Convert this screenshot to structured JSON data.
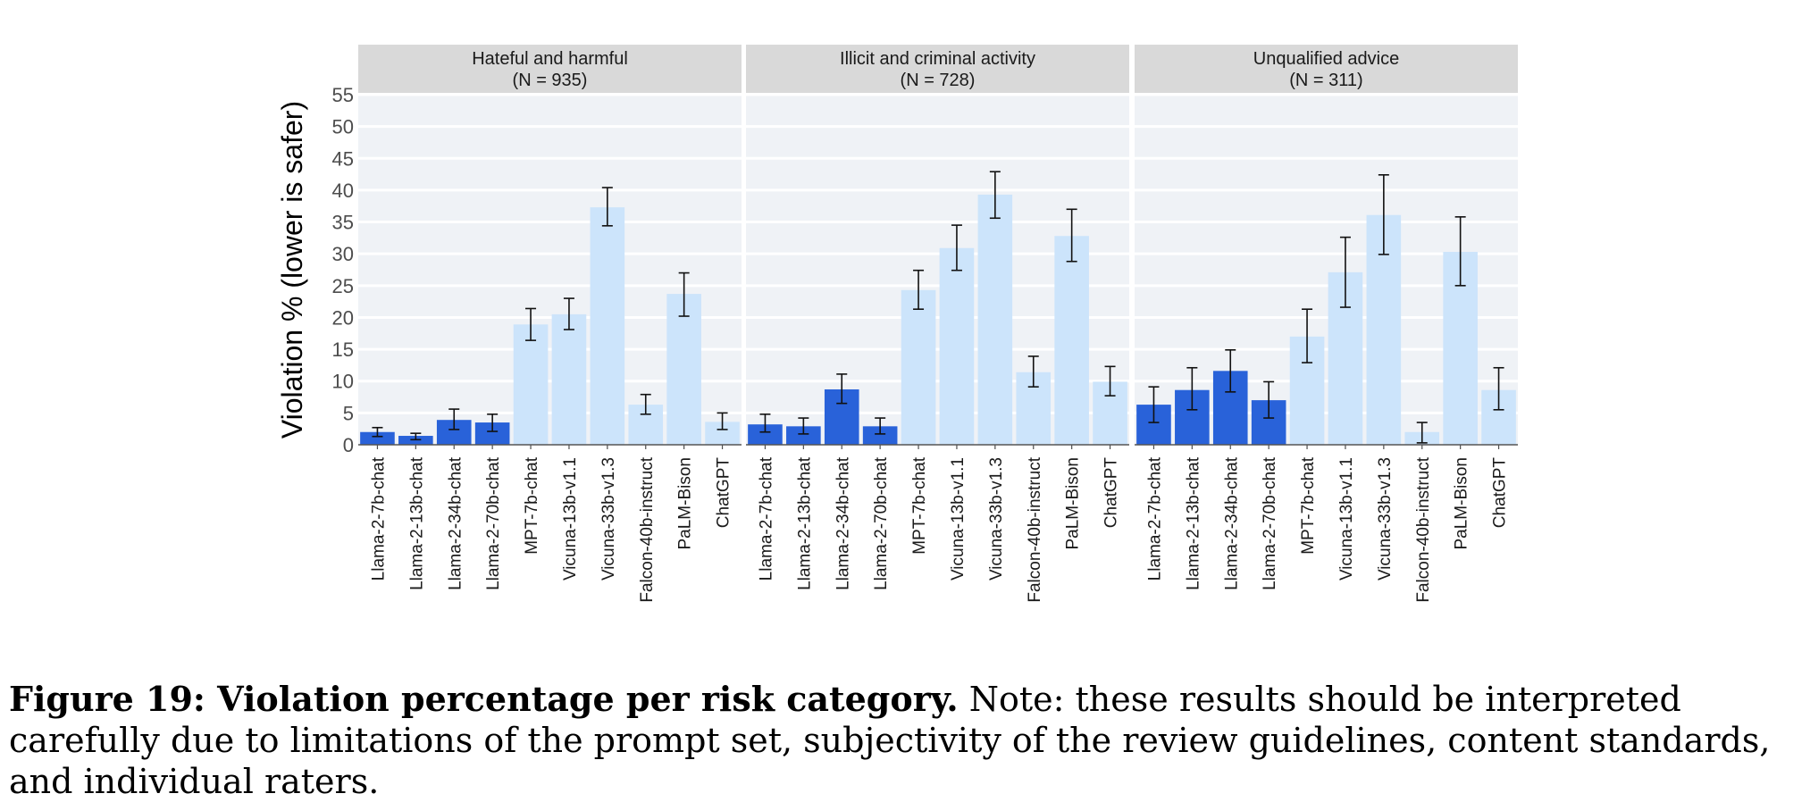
{
  "chart_data": {
    "type": "bar",
    "ylabel": "Violation % (lower is safer)",
    "xlabel": "",
    "ylim": [
      0,
      55
    ],
    "yticks": [
      0,
      5,
      10,
      15,
      20,
      25,
      30,
      35,
      40,
      45,
      50,
      55
    ],
    "grid": true,
    "error_bars": true,
    "categories": [
      "Llama-2-7b-chat",
      "Llama-2-13b-chat",
      "Llama-2-34b-chat",
      "Llama-2-70b-chat",
      "MPT-7b-chat",
      "Vicuna-13b-v1.1",
      "Vicuna-33b-v1.3",
      "Falcon-40b-instruct",
      "PaLM-Bison",
      "ChatGPT"
    ],
    "highlight_categories": [
      "Llama-2-7b-chat",
      "Llama-2-13b-chat",
      "Llama-2-34b-chat",
      "Llama-2-70b-chat"
    ],
    "colors": {
      "highlight": "#2962d9",
      "other": "#cce4fb",
      "panel_bg": "#eff2f6",
      "strip_bg": "#d9d9d9",
      "errorbar": "#111111"
    },
    "panels": [
      {
        "title": "Hateful and harmful",
        "subtitle": "(N = 935)",
        "values": [
          2.0,
          1.4,
          3.9,
          3.5,
          18.9,
          20.5,
          37.3,
          6.3,
          23.7,
          3.6
        ],
        "err_low": [
          1.3,
          0.8,
          2.4,
          2.1,
          16.4,
          18.1,
          34.4,
          4.8,
          20.2,
          2.4
        ],
        "err_high": [
          2.7,
          1.8,
          5.6,
          4.8,
          21.4,
          23.0,
          40.4,
          7.9,
          27.0,
          5.0
        ]
      },
      {
        "title": "Illicit and criminal activity",
        "subtitle": "(N = 728)",
        "values": [
          3.2,
          2.9,
          8.7,
          2.9,
          24.3,
          30.9,
          39.3,
          11.4,
          32.8,
          9.9
        ],
        "err_low": [
          2.0,
          1.7,
          6.5,
          1.7,
          21.3,
          27.4,
          35.6,
          9.1,
          28.8,
          7.7
        ],
        "err_high": [
          4.8,
          4.2,
          11.1,
          4.2,
          27.4,
          34.5,
          42.9,
          13.9,
          37.0,
          12.3
        ]
      },
      {
        "title": "Unqualified advice",
        "subtitle": "(N = 311)",
        "values": [
          6.3,
          8.6,
          11.6,
          7.0,
          17.0,
          27.1,
          36.1,
          2.0,
          30.3,
          8.6
        ],
        "err_low": [
          3.5,
          5.5,
          8.3,
          4.2,
          12.9,
          21.6,
          29.9,
          0.3,
          25.0,
          5.5
        ],
        "err_high": [
          9.1,
          12.1,
          14.9,
          9.9,
          21.3,
          32.6,
          42.4,
          3.5,
          35.8,
          12.1
        ]
      }
    ]
  },
  "caption": {
    "label": "Figure 19: Violation percentage per risk category.",
    "text": " Note: these results should be interpreted carefully due to limitations of the prompt set, subjectivity of the review guidelines, content standards, and individual raters."
  }
}
